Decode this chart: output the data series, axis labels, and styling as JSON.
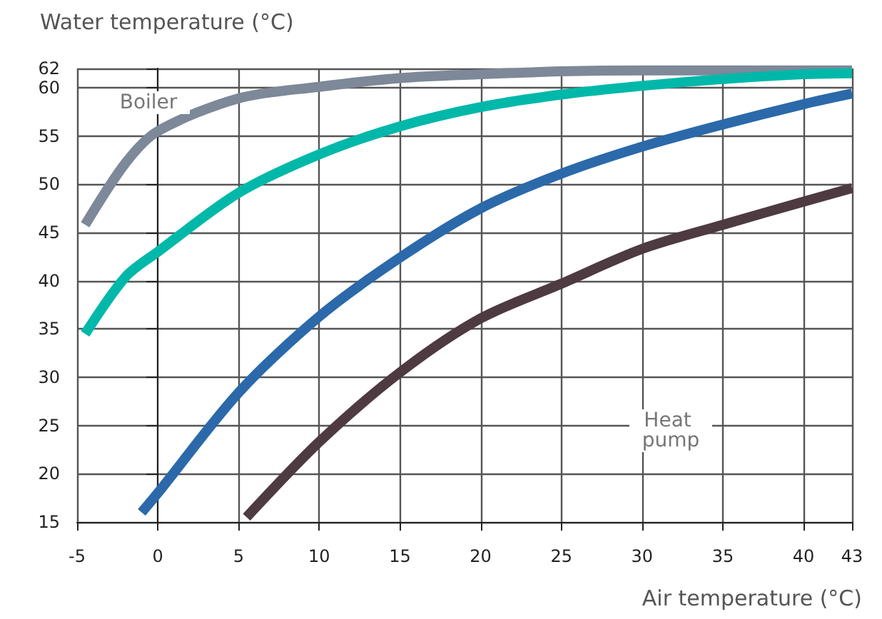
{
  "chart_data": {
    "type": "line",
    "xlabel": "Air temperature (°C)",
    "ylabel": "Water temperature (°C)",
    "xlim": [
      -5,
      43
    ],
    "xticks": [
      -5,
      0,
      5,
      10,
      15,
      20,
      25,
      30,
      35,
      40,
      43
    ],
    "ylim": [
      15,
      62
    ],
    "yticks": [
      15,
      20,
      25,
      30,
      35,
      40,
      45,
      50,
      55,
      60,
      62
    ],
    "grid": true,
    "marker": "none",
    "line_style": "solid",
    "series": [
      {
        "color": "#7d8899",
        "x": [
          -4.5,
          -2,
          0,
          5,
          10,
          15,
          20,
          25,
          30,
          35,
          40,
          43
        ],
        "values": [
          45.8,
          52.2,
          55.5,
          58.9,
          60.1,
          61,
          61.4,
          61.7,
          61.8,
          61.8,
          61.8,
          61.8
        ]
      },
      {
        "color": "#00b8a9",
        "x": [
          -4.5,
          -2,
          0,
          5,
          10,
          15,
          20,
          25,
          30,
          35,
          40,
          43
        ],
        "values": [
          34.5,
          40.4,
          43,
          49.1,
          53.1,
          56,
          58,
          59.3,
          60.2,
          60.9,
          61.4,
          61.5
        ]
      },
      {
        "color": "#2b69aa",
        "x": [
          -1,
          0,
          5,
          10,
          15,
          20,
          25,
          30,
          35,
          40,
          43
        ],
        "values": [
          16,
          18,
          28.4,
          36.3,
          42.4,
          47.5,
          51.1,
          53.9,
          56.2,
          58.3,
          59.4
        ]
      },
      {
        "color": "#4e3a41",
        "x": [
          5.5,
          10,
          15,
          20,
          25,
          30,
          35,
          40,
          43
        ],
        "values": [
          15.5,
          23.3,
          30.5,
          36.1,
          39.7,
          43.3,
          45.8,
          48.2,
          49.6
        ]
      }
    ],
    "annotations": [
      "Boiler",
      "Heat pump"
    ]
  }
}
